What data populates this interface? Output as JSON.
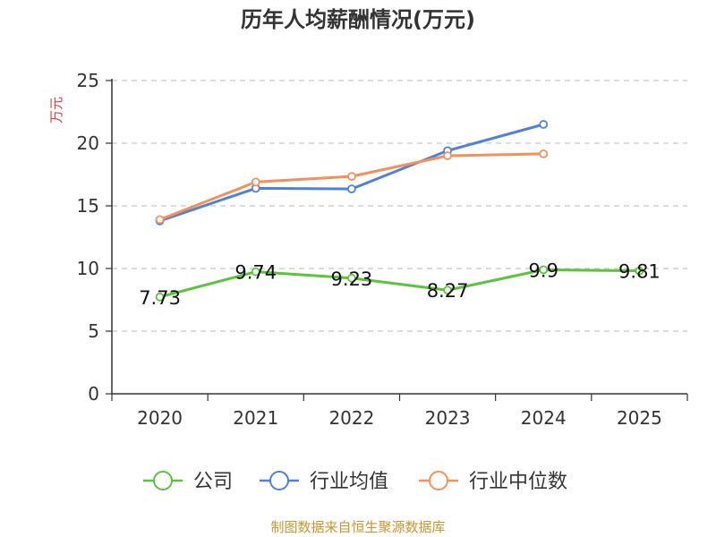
{
  "chart_data": {
    "type": "line",
    "title": "历年人均薪酬情况(万元)",
    "ylabel": "万元",
    "xlabel": "",
    "categories": [
      "2020",
      "2021",
      "2022",
      "2023",
      "2024",
      "2025"
    ],
    "ylim": [
      0,
      25
    ],
    "yticks": [
      0,
      5,
      10,
      15,
      20,
      25
    ],
    "grid": true,
    "legend_position": "bottom",
    "series": [
      {
        "name": "公司",
        "color": "#5cc33a",
        "values": [
          7.73,
          9.74,
          9.23,
          8.27,
          9.9,
          9.81
        ],
        "data_labels": [
          "7.73",
          "9.74",
          "9.23",
          "8.27",
          "9.9",
          "9.81"
        ]
      },
      {
        "name": "行业均值",
        "color": "#4f81d8",
        "values": [
          13.8,
          16.4,
          16.35,
          19.4,
          21.5,
          null
        ],
        "data_labels": []
      },
      {
        "name": "行业中位数",
        "color": "#f4905a",
        "values": [
          13.9,
          16.9,
          17.35,
          19.0,
          19.15,
          null
        ],
        "data_labels": []
      }
    ]
  },
  "footer": {
    "source": "制图数据来自恒生聚源数据库"
  },
  "colors": {
    "title": "#333333",
    "ylabel": "#e0393e",
    "axis": "#333333",
    "grid": "#c8c8c8",
    "source": "#c8962d"
  }
}
